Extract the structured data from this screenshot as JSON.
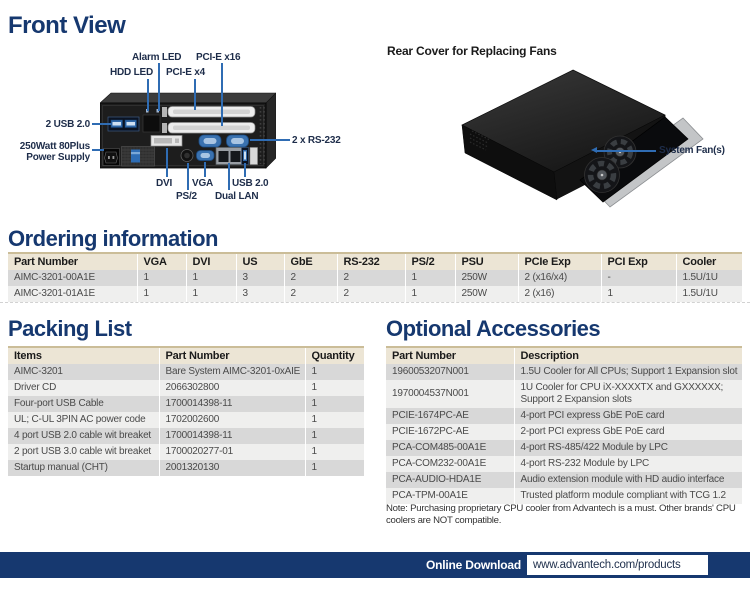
{
  "front_view": {
    "title": "Front View",
    "labels": {
      "alarm_led": "Alarm LED",
      "pcie_x16": "PCI-E x16",
      "hdd_led": "HDD LED",
      "pcie_x4": "PCI-E x4",
      "usb2": "2 USB 2.0",
      "psu_line1": "250Watt 80Plus",
      "psu_line2": "Power Supply",
      "rs232": "2 x RS-232",
      "dvi": "DVI",
      "vga": "VGA",
      "usb20_bottom": "USB 2.0",
      "ps2": "PS/2",
      "dual_lan": "Dual LAN"
    }
  },
  "rear_cover": {
    "title": "Rear Cover for Replacing Fans",
    "system_fans_label": "System Fan(s)"
  },
  "ordering": {
    "title": "Ordering information",
    "headers": [
      "Part Number",
      "VGA",
      "DVI",
      "US",
      "GbE",
      "RS-232",
      "PS/2",
      "PSU",
      "PCIe Exp",
      "PCI Exp",
      "Cooler"
    ],
    "rows": [
      [
        "AIMC-3201-00A1E",
        "1",
        "1",
        "3",
        "2",
        "2",
        "1",
        "250W",
        "2 (x16/x4)",
        "-",
        "1.5U/1U"
      ],
      [
        "AIMC-3201-01A1E",
        "1",
        "1",
        "3",
        "2",
        "2",
        "1",
        "250W",
        "2 (x16)",
        "1",
        "1.5U/1U"
      ]
    ]
  },
  "packing": {
    "title": "Packing List",
    "headers": [
      "Items",
      "Part Number",
      "Quantity"
    ],
    "rows": [
      [
        "AIMC-3201",
        "Bare System AIMC-3201-0xAIE",
        "1"
      ],
      [
        "Driver CD",
        "2066302800",
        "1"
      ],
      [
        "Four-port USB Cable",
        "1700014398-11",
        "1"
      ],
      [
        "UL; C-UL 3PIN AC power code",
        "1702002600",
        "1"
      ],
      [
        "4 port USB 2.0 cable wit breaket",
        "1700014398-11",
        "1"
      ],
      [
        "2 port USB 3.0 cable wit breaket",
        "1700020277-01",
        "1"
      ],
      [
        "Startup manual (CHT)",
        "2001320130",
        "1"
      ]
    ]
  },
  "accessories": {
    "title": "Optional Accessories",
    "headers": [
      "Part Number",
      "Description"
    ],
    "rows": [
      [
        "1960053207N001",
        "1.5U Cooler for All CPUs; Support 1 Expansion slot"
      ],
      [
        "1970004537N001",
        "1U Cooler for CPU iX-XXXXTX and GXXXXXX; Support 2 Expansion slots"
      ],
      [
        "PCIE-1674PC-AE",
        "4-port PCI express GbE PoE card"
      ],
      [
        "PCIE-1672PC-AE",
        "2-port PCI express GbE PoE card"
      ],
      [
        "PCA-COM485-00A1E",
        "4-port RS-485/422 Module by LPC"
      ],
      [
        "PCA-COM232-00A1E",
        "4-port RS-232 Module by LPC"
      ],
      [
        "PCA-AUDIO-HDA1E",
        "Audio extension module with HD audio interface"
      ],
      [
        "PCA-TPM-00A1E",
        "Trusted platform module compliant with TCG 1.2"
      ]
    ],
    "note": "Note: Purchasing proprietary CPU cooler from Advantech is a must. Other brands' CPU coolers are NOT compatible."
  },
  "footer": {
    "label": "Online Download",
    "url": "www.advantech.com/products"
  },
  "colors": {
    "heading_navy": "#16386f",
    "callout_blue": "#2f6cb3",
    "table_border_tan": "#cbbd98",
    "table_header_bg": "#ece5d5",
    "row_dark": "#d8d8d8",
    "row_light": "#efefee",
    "footer_navy": "#16386f"
  }
}
